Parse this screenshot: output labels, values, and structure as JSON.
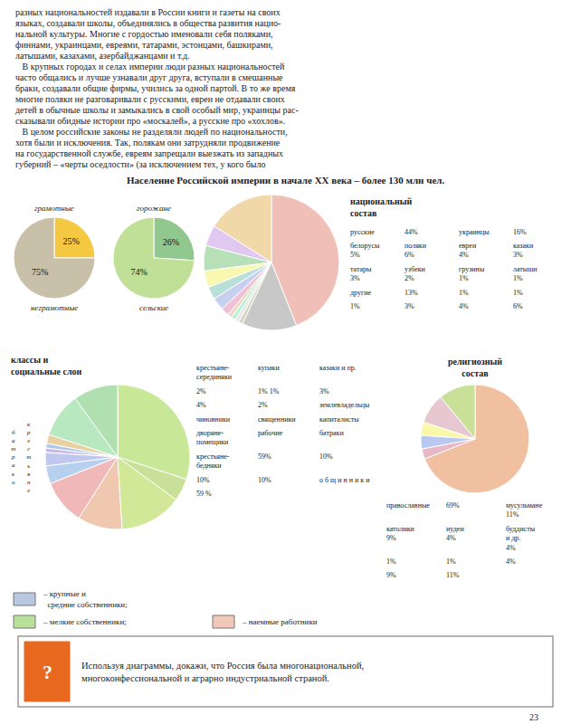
{
  "chart_data": [
    {
      "type": "text",
      "title": "Население Российской империи в начале XX века – более 130 млн чел.",
      "annotations": [
        "разных национальностей издавали в России книги и газеты на своих",
        "языках, создавали школы, объединялись в общества развития нацио-",
        "нальной культуры. Многие с гордостью именовали себя поляками,",
        "финнами, украинцами, евреями, татарами, эстонцами, башкирами,",
        "латышами, казахами, азербайджанцами и т.д.",
        "   В крупных городах и селах империи люди разных национальностей",
        "часто общались и лучше узнавали друг друга, вступали в смешанные",
        "браки, создавали общие фирмы, учились за одной партой. В то же время",
        "многие поляки не разговаривали с русскими, евреи не отдавали своих",
        "детей в обычные школы и замыкались в свой особый мир, украинцы рас-",
        "сказывали обидные истории про «москалей», а русские про «хохлов».",
        "   В целом российские законы не разделяли людей по национальности,",
        "хотя были и исключения. Так, полякам они затрудняли продвижение",
        "на государственной службе, евреям запрещали выезжать из западных",
        "губерний – «черты оседлости» (за исключением тех, у кого было"
      ]
    },
    {
      "type": "pie",
      "categories": [
        "грамотные",
        "неграмотные"
      ],
      "values": [
        25,
        75
      ],
      "value_labels": [
        "25%",
        "75%"
      ],
      "data_labels": true,
      "colors": [
        "#f5c842",
        "#c8c0a8"
      ]
    },
    {
      "type": "pie",
      "categories": [
        "горожане",
        "сельские"
      ],
      "values": [
        26,
        74
      ],
      "value_labels": [
        "26%",
        "74%"
      ],
      "data_labels": true,
      "colors": [
        "#90c890",
        "#c0e098"
      ]
    },
    {
      "type": "pie",
      "title": "классы и\nсоциальные слои",
      "values": [
        30,
        10,
        10,
        2,
        1,
        1,
        3,
        4,
        10,
        10,
        14,
        5
      ],
      "colors": [
        "#c8e898",
        "#b0e0b0",
        "#b8e8c0",
        "#e8d0a0",
        "#b0c8e8",
        "#c8b8e8",
        "#c0c8f0",
        "#b8d0f0",
        "#f0b8b8",
        "#f0c8b0",
        "#d0e898",
        "#c8e098"
      ],
      "annotations": [
        "крестьяне-\nсерединяки",
        "купаки",
        "казаки и пр.",
        "2%",
        "1% 1%",
        "3%",
        "4%",
        "2%",
        "землевладельцы",
        "чиновники",
        "священники",
        "капиталисты",
        "дворяне-\nпомещики",
        "рабочие",
        "батраки",
        "крестьяне-\nбедняки",
        "59%",
        "10%",
        "10%",
        "10%",
        "б\nа\nт\nр\nа\nк\nи",
        "к\nр\nе\nс\nт\nь\nя\nн\nе",
        "о б щ и н н и к и",
        "59 %"
      ]
    },
    {
      "type": "pie",
      "title": "национальный\nсостав",
      "values": [
        44,
        16,
        5,
        6,
        4,
        3,
        3,
        2,
        1,
        1,
        1,
        1,
        13
      ],
      "colors": [
        "#f0c0b8",
        "#f0d8a8",
        "#e0c8f0",
        "#b8e0b8",
        "#f8f8b0",
        "#b8e0d8",
        "#c8d0f0",
        "#f0c0d8",
        "#f0d8c0",
        "#b8f0d8",
        "#e8e8e8",
        "#d8d8c0",
        "#c8c8c8"
      ],
      "annotations": [
        "русские",
        "44%",
        "украинцы",
        "16%",
        "белорусы\n5%",
        "поляки\n6%",
        "евреи\n4%",
        "казаки\n3%",
        "татары\n3%",
        "узбеки\n2%",
        "грузины\n1%",
        "латыши\n1%",
        "другие",
        "13%",
        "1%",
        "1%",
        "1%",
        "3%",
        "4%",
        "6%"
      ]
    },
    {
      "type": "pie",
      "title": "религиозный\nсостав",
      "values": [
        69,
        11,
        9,
        4,
        4,
        3
      ],
      "colors": [
        "#f0c0a0",
        "#c8e098",
        "#e8c8d0",
        "#f8f8a8",
        "#b8c8f0",
        "#e8b8c8"
      ],
      "annotations": [
        "православные",
        "69%",
        "мусульмане\n11%",
        "католики\n9%",
        "иудеи\n4%",
        "буддисты\nи др.\n4%",
        "1%",
        "1%",
        "4%",
        "9%",
        "11%"
      ]
    },
    {
      "type": "legend",
      "series": [
        {
          "name": "– крупные и\n  средние собственники;",
          "color": "#b8c8e0"
        },
        {
          "name": "– мелкие собственники;",
          "color": "#b8e098"
        },
        {
          "name": "– наемные работники",
          "color": "#f0c8b8"
        }
      ]
    },
    {
      "type": "note",
      "color": "#e86820",
      "annotations": [
        "?",
        "Используя диаграммы, докажи, что Россия была многонациональной,\nмногоконфессиональной и аграрно индустриальной страной."
      ]
    },
    {
      "type": "page",
      "annotations": [
        "23"
      ]
    }
  ]
}
